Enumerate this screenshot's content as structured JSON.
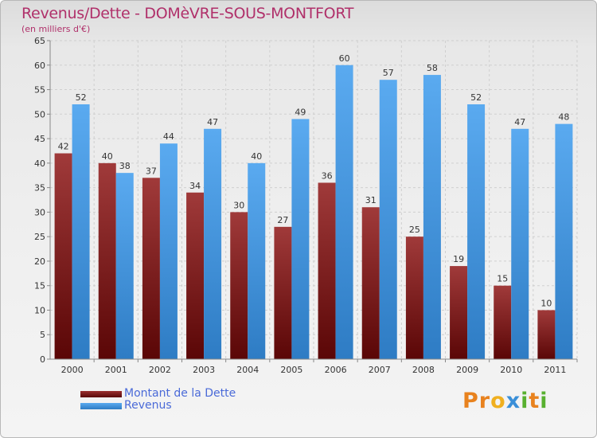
{
  "header": {
    "title": "Revenus/Dette - DOMèVRE-SOUS-MONTFORT",
    "subtitle": "(en milliers d'€)"
  },
  "legend": [
    {
      "label": "Montant de la Dette",
      "color": "#7a1a1a"
    },
    {
      "label": "Revenus",
      "color": "#4a9ee6"
    }
  ],
  "logo": {
    "text": "Proxiti",
    "letters": [
      {
        "ch": "P",
        "color": "#e8821e"
      },
      {
        "ch": "r",
        "color": "#e8821e"
      },
      {
        "ch": "o",
        "color": "#f0b020"
      },
      {
        "ch": "x",
        "color": "#3a8fd8"
      },
      {
        "ch": "i",
        "color": "#58b030"
      },
      {
        "ch": "t",
        "color": "#e8821e"
      },
      {
        "ch": "i",
        "color": "#58b030"
      }
    ]
  },
  "chart_data": {
    "type": "bar",
    "categories": [
      "2000",
      "2001",
      "2002",
      "2003",
      "2004",
      "2005",
      "2006",
      "2007",
      "2008",
      "2009",
      "2010",
      "2011"
    ],
    "series": [
      {
        "name": "Montant de la Dette",
        "color": "#7a1a1a",
        "values": [
          42,
          40,
          37,
          34,
          30,
          27,
          36,
          31,
          25,
          19,
          15,
          10
        ]
      },
      {
        "name": "Revenus",
        "color": "#4a9ee6",
        "values": [
          52,
          38,
          44,
          47,
          40,
          49,
          60,
          57,
          58,
          52,
          47,
          48
        ]
      }
    ],
    "ylim": [
      0,
      65
    ],
    "yticks": [
      0,
      5,
      10,
      15,
      20,
      25,
      30,
      35,
      40,
      45,
      50,
      55,
      60,
      65
    ],
    "grid": true,
    "legend_position": "bottom-left"
  }
}
